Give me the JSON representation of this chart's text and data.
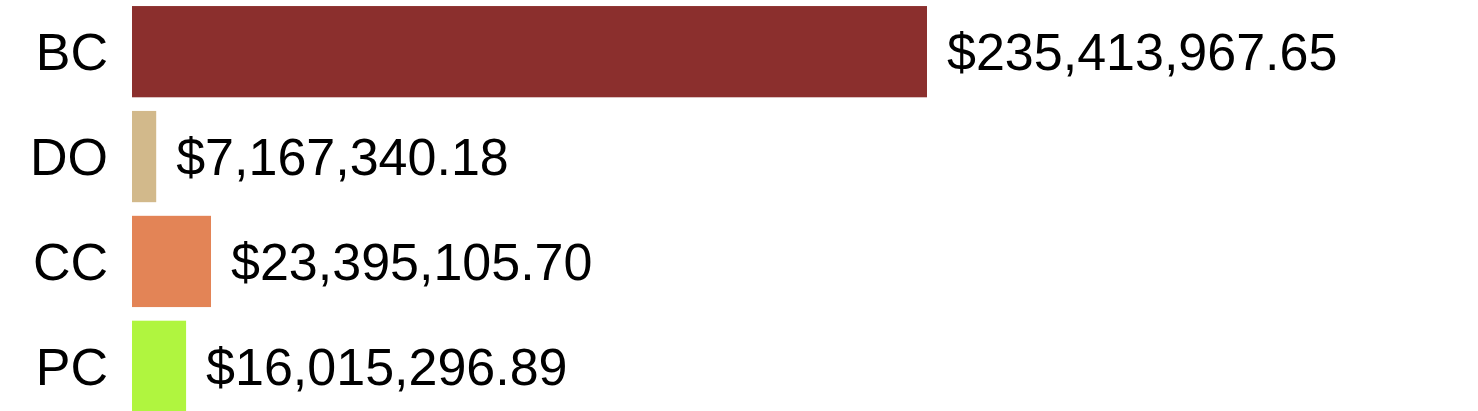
{
  "chart_data": {
    "type": "bar",
    "orientation": "horizontal",
    "categories": [
      "BC",
      "DO",
      "CC",
      "PC"
    ],
    "values": [
      235413967.65,
      7167340.18,
      23395105.7,
      16015296.89
    ],
    "colors": [
      "#8b2f2d",
      "#d2b98b",
      "#e38456",
      "#b0f53f"
    ],
    "value_labels": [
      "$235,413,967.65",
      "$7,167,340.18",
      "$23,395,105.70",
      "$16,015,296.89"
    ]
  }
}
